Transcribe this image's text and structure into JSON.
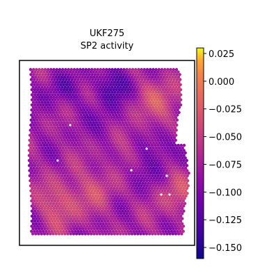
{
  "chart_data": {
    "type": "heatmap",
    "title": "UKF275",
    "subtitle": "SP2 activity",
    "colormap": "plasma",
    "colorbar": {
      "range": [
        -0.16,
        0.03
      ],
      "ticks": [
        0.025,
        0.0,
        -0.025,
        -0.05,
        -0.075,
        -0.1,
        -0.125,
        -0.15
      ],
      "tick_labels": [
        "0.025",
        "0.000",
        "−0.025",
        "−0.050",
        "−0.075",
        "−0.100",
        "−0.125",
        "−0.150"
      ]
    },
    "grid": false,
    "value_field": {
      "range_min": -0.155,
      "range_max": 0.03,
      "low_areas": [
        {
          "u": 0.52,
          "v": 0.1,
          "strength": 1.0
        },
        {
          "u": 0.5,
          "v": 0.34,
          "strength": 0.7
        },
        {
          "u": 0.18,
          "v": 0.12,
          "strength": 0.6
        },
        {
          "u": 0.85,
          "v": 0.45,
          "strength": 0.7
        },
        {
          "u": 0.7,
          "v": 0.62,
          "strength": 0.6
        }
      ],
      "high_areas": [
        {
          "u": 0.85,
          "v": 0.2,
          "strength": 0.9
        },
        {
          "u": 0.2,
          "v": 0.8,
          "strength": 1.0
        },
        {
          "u": 0.45,
          "v": 0.7,
          "strength": 0.6
        },
        {
          "u": 0.6,
          "v": 0.4,
          "strength": 0.5
        },
        {
          "u": 0.93,
          "v": 0.75,
          "strength": 0.7
        }
      ]
    }
  }
}
